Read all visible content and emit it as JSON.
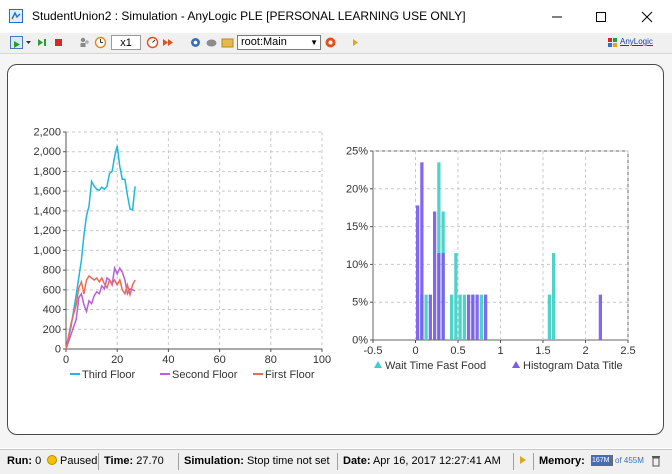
{
  "window": {
    "title": "StudentUnion2 : Simulation - AnyLogic PLE [PERSONAL LEARNING USE ONLY]"
  },
  "toolbar": {
    "speed_label": "x1",
    "experiment_select": "root:Main",
    "logo_text": "AnyLogic"
  },
  "status": {
    "run_label": "Run:",
    "run_value": "0",
    "state": "Paused",
    "time_label": "Time:",
    "time_value": "27.70",
    "simulation_label": "Simulation:",
    "simulation_value": "Stop time not set",
    "date_label": "Date:",
    "date_value": "Apr 16, 2017 12:27:41 AM",
    "memory_label": "Memory:",
    "memory_used": "167M",
    "memory_total": "of 455M"
  },
  "colors": {
    "third_floor": "#1fb7e0",
    "second_floor": "#b95ee0",
    "first_floor": "#ee6a55",
    "wait_time": "#3fcfc6",
    "histogram": "#7a5af0"
  },
  "chart_data": [
    {
      "type": "line",
      "title": "",
      "xlabel": "",
      "ylabel": "",
      "xlim": [
        0,
        100
      ],
      "ylim": [
        0,
        2200
      ],
      "x_ticks": [
        "0",
        "20",
        "40",
        "60",
        "80",
        "100"
      ],
      "y_ticks": [
        "0",
        "200",
        "400",
        "600",
        "800",
        "1,000",
        "1,200",
        "1,400",
        "1,600",
        "1,800",
        "2,000",
        "2,200"
      ],
      "grid": true,
      "legend": "bottom",
      "series": [
        {
          "name": "Third Floor",
          "color": "#1fb7e0",
          "points": [
            [
              0,
              0
            ],
            [
              2,
              230
            ],
            [
              4,
              550
            ],
            [
              6,
              900
            ],
            [
              7,
              1150
            ],
            [
              8,
              1350
            ],
            [
              9,
              1450
            ],
            [
              10,
              1700
            ],
            [
              11,
              1650
            ],
            [
              12,
              1620
            ],
            [
              13,
              1610
            ],
            [
              14,
              1640
            ],
            [
              15,
              1620
            ],
            [
              16,
              1650
            ],
            [
              17,
              1780
            ],
            [
              18,
              1800
            ],
            [
              19,
              1950
            ],
            [
              20,
              2060
            ],
            [
              21,
              1850
            ],
            [
              22,
              1720
            ],
            [
              23,
              1720
            ],
            [
              24,
              1560
            ],
            [
              25,
              1420
            ],
            [
              26,
              1410
            ],
            [
              27,
              1650
            ]
          ]
        },
        {
          "name": "Second Floor",
          "color": "#b95ee0",
          "points": [
            [
              0,
              0
            ],
            [
              2,
              150
            ],
            [
              4,
              300
            ],
            [
              5,
              520
            ],
            [
              6,
              560
            ],
            [
              7,
              450
            ],
            [
              8,
              380
            ],
            [
              9,
              490
            ],
            [
              10,
              460
            ],
            [
              11,
              540
            ],
            [
              12,
              580
            ],
            [
              13,
              560
            ],
            [
              14,
              640
            ],
            [
              15,
              610
            ],
            [
              16,
              720
            ],
            [
              17,
              700
            ],
            [
              18,
              650
            ],
            [
              19,
              820
            ],
            [
              20,
              760
            ],
            [
              21,
              820
            ],
            [
              22,
              780
            ],
            [
              23,
              700
            ],
            [
              24,
              560
            ],
            [
              25,
              610
            ],
            [
              26,
              600
            ],
            [
              27,
              590
            ]
          ]
        },
        {
          "name": "First Floor",
          "color": "#ee6a55",
          "points": [
            [
              0,
              0
            ],
            [
              2,
              260
            ],
            [
              4,
              450
            ],
            [
              5,
              620
            ],
            [
              6,
              680
            ],
            [
              7,
              560
            ],
            [
              8,
              700
            ],
            [
              9,
              740
            ],
            [
              10,
              720
            ],
            [
              11,
              700
            ],
            [
              12,
              720
            ],
            [
              13,
              680
            ],
            [
              14,
              720
            ],
            [
              15,
              660
            ],
            [
              16,
              620
            ],
            [
              17,
              700
            ],
            [
              18,
              660
            ],
            [
              19,
              700
            ],
            [
              20,
              650
            ],
            [
              21,
              700
            ],
            [
              22,
              600
            ],
            [
              23,
              560
            ],
            [
              24,
              650
            ],
            [
              25,
              550
            ],
            [
              26,
              650
            ],
            [
              27,
              700
            ]
          ]
        }
      ]
    },
    {
      "type": "bar",
      "title": "",
      "xlabel": "",
      "ylabel": "",
      "xlim": [
        -0.5,
        2.5
      ],
      "ylim": [
        0,
        0.25
      ],
      "x_ticks": [
        "-0.5",
        "0",
        "0.5",
        "1",
        "1.5",
        "2",
        "2.5"
      ],
      "y_ticks": [
        "0%",
        "5%",
        "10%",
        "15%",
        "20%",
        "25%"
      ],
      "grid": true,
      "legend": "bottom",
      "bin_width": 0.05,
      "series": [
        {
          "name": "Wait Time Fast Food",
          "color": "#3fcfc6",
          "bins": [
            [
              0.05,
              0.06
            ],
            [
              0.1,
              0.06
            ],
            [
              0.25,
              0.235
            ],
            [
              0.3,
              0.17
            ],
            [
              0.4,
              0.06
            ],
            [
              0.45,
              0.115
            ],
            [
              0.5,
              0.06
            ],
            [
              0.55,
              0.06
            ],
            [
              0.65,
              0.06
            ],
            [
              0.75,
              0.06
            ],
            [
              1.55,
              0.06
            ],
            [
              1.6,
              0.115
            ]
          ]
        },
        {
          "name": "Histogram Data Title",
          "color": "#7a5af0",
          "bins": [
            [
              0,
              0.178
            ],
            [
              0.05,
              0.235
            ],
            [
              0.15,
              0.06
            ],
            [
              0.2,
              0.17
            ],
            [
              0.25,
              0.115
            ],
            [
              0.3,
              0.115
            ],
            [
              0.6,
              0.06
            ],
            [
              0.65,
              0.06
            ],
            [
              0.7,
              0.06
            ],
            [
              0.8,
              0.06
            ],
            [
              2.15,
              0.06
            ]
          ]
        }
      ]
    }
  ]
}
